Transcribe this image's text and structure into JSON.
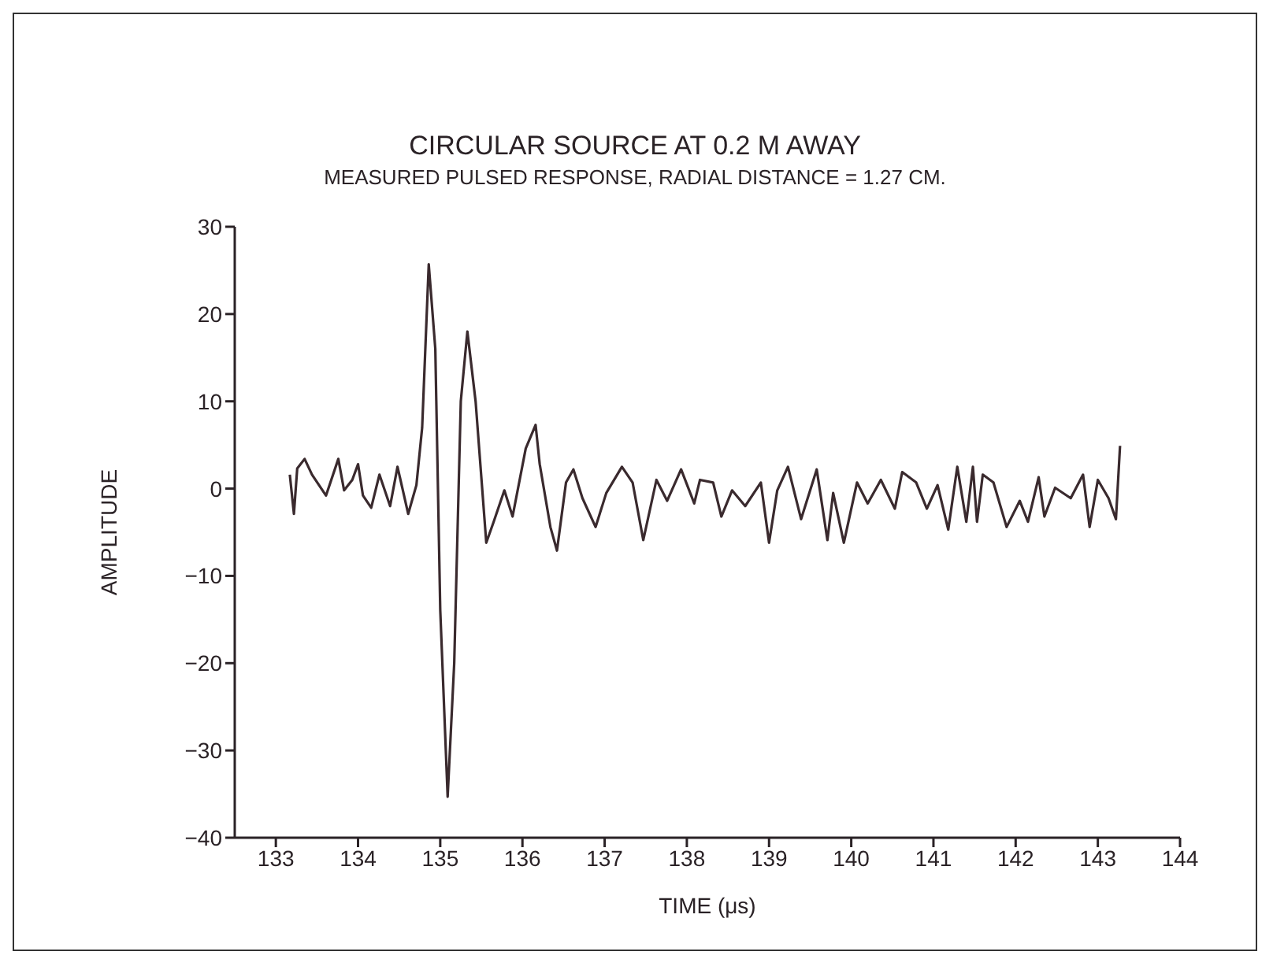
{
  "chart_data": {
    "type": "line",
    "title": "CIRCULAR SOURCE AT 0.2 M AWAY",
    "subtitle": "MEASURED PULSED RESPONSE, RADIAL DISTANCE = 1.27 CM.",
    "xlabel": "TIME (μs)",
    "ylabel": "AMPLITUDE",
    "xlim": [
      132.5,
      144
    ],
    "xticks": [
      133,
      134,
      135,
      136,
      137,
      138,
      139,
      140,
      141,
      142,
      143,
      144
    ],
    "ylim": [
      -40,
      30
    ],
    "yticks": [
      -40,
      -30,
      -20,
      -10,
      0,
      10,
      20,
      30
    ],
    "grid": false,
    "legend": false,
    "marker": "none",
    "line_style": "solid",
    "x": [
      133.17,
      133.22,
      133.26,
      133.35,
      133.44,
      133.61,
      133.76,
      133.83,
      133.93,
      134.0,
      134.06,
      134.16,
      134.26,
      134.39,
      134.48,
      134.61,
      134.71,
      134.78,
      134.86,
      134.94,
      135.0,
      135.09,
      135.17,
      135.25,
      135.33,
      135.43,
      135.56,
      135.65,
      135.78,
      135.88,
      136.04,
      136.16,
      136.21,
      136.34,
      136.42,
      136.53,
      136.62,
      136.73,
      136.89,
      137.02,
      137.21,
      137.34,
      137.47,
      137.63,
      137.76,
      137.93,
      138.09,
      138.16,
      138.32,
      138.42,
      138.55,
      138.71,
      138.9,
      139.0,
      139.1,
      139.23,
      139.39,
      139.58,
      139.71,
      139.78,
      139.91,
      140.07,
      140.2,
      140.36,
      140.53,
      140.62,
      140.79,
      140.92,
      141.05,
      141.18,
      141.29,
      141.4,
      141.48,
      141.53,
      141.6,
      141.73,
      141.89,
      142.05,
      142.15,
      142.28,
      142.35,
      142.48,
      142.67,
      142.82,
      142.9,
      143.0,
      143.13,
      143.22,
      143.27
    ],
    "series": [
      {
        "color": "#3a2a2e",
        "values": [
          1.6,
          -2.9,
          2.3,
          3.4,
          1.6,
          -0.8,
          3.4,
          -0.2,
          1.0,
          2.8,
          -0.8,
          -2.2,
          1.6,
          -2.0,
          2.5,
          -2.9,
          0.4,
          7.0,
          25.7,
          16,
          -13.9,
          -35.3,
          -20,
          10,
          18,
          10,
          -6.2,
          -3.8,
          -0.2,
          -3.2,
          4.6,
          7.3,
          2.8,
          -4.4,
          -7.1,
          0.7,
          2.2,
          -1.1,
          -4.4,
          -0.5,
          2.5,
          0.7,
          -5.9,
          1.0,
          -1.4,
          2.2,
          -1.7,
          1.0,
          0.7,
          -3.2,
          -0.2,
          -2.0,
          0.7,
          -6.2,
          -0.2,
          2.5,
          -3.5,
          2.2,
          -5.9,
          -0.5,
          -6.2,
          0.7,
          -1.7,
          1.0,
          -2.3,
          1.9,
          0.7,
          -2.3,
          0.4,
          -4.7,
          2.5,
          -3.8,
          2.5,
          -3.8,
          1.6,
          0.7,
          -4.4,
          -1.4,
          -3.8,
          1.3,
          -3.2,
          0.1,
          -1.1,
          1.6,
          -4.4,
          1.0,
          -1.1,
          -3.5,
          4.9
        ]
      }
    ]
  }
}
